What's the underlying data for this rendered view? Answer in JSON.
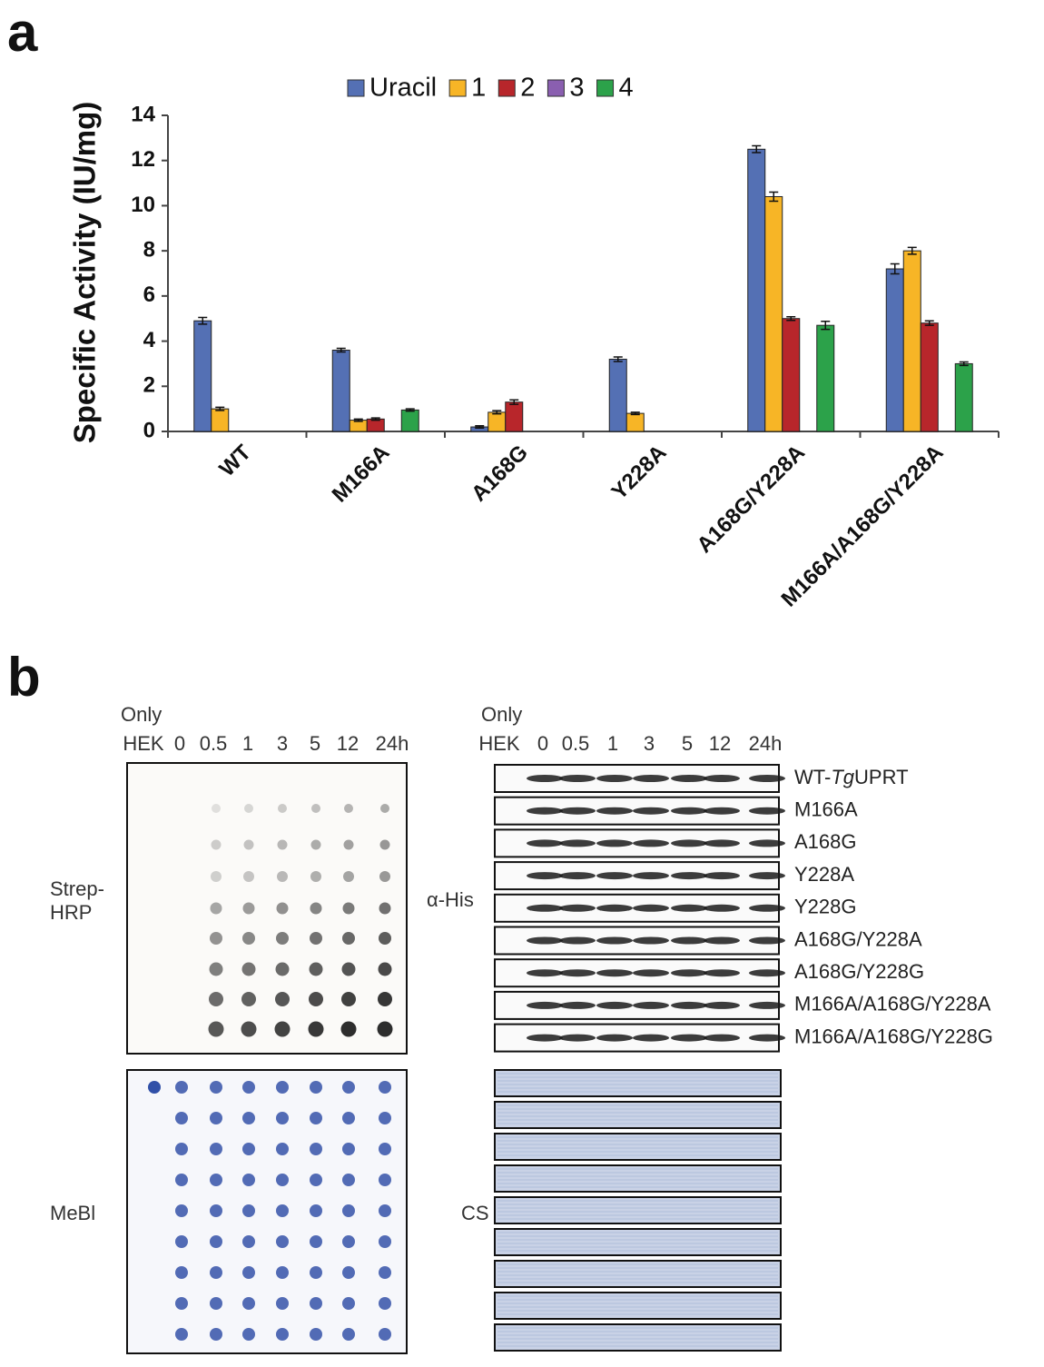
{
  "panel_labels": {
    "a": "a",
    "b": "b"
  },
  "chart_data": {
    "type": "bar",
    "y_label": "Specific Activity (IU/mg)",
    "categories": [
      "WT",
      "M166A",
      "A168G",
      "Y228A",
      "A168G/Y228A",
      "M166A/A168G/Y228A"
    ],
    "series": [
      {
        "name": "Uracil",
        "color": "#5470b4",
        "values": [
          4.9,
          3.6,
          0.2,
          3.2,
          12.5,
          7.2
        ],
        "errors": [
          0.15,
          0.08,
          0.05,
          0.1,
          0.15,
          0.22
        ]
      },
      {
        "name": "1",
        "color": "#f7b526",
        "values": [
          1.0,
          0.5,
          0.85,
          0.8,
          10.4,
          8.0
        ],
        "errors": [
          0.07,
          0.05,
          0.07,
          0.05,
          0.2,
          0.15
        ]
      },
      {
        "name": "2",
        "color": "#b8262b",
        "values": [
          null,
          0.55,
          1.3,
          null,
          5.0,
          4.8
        ],
        "errors": [
          null,
          0.05,
          0.1,
          null,
          0.08,
          0.1
        ]
      },
      {
        "name": "3",
        "color": "#8a5fb0",
        "values": [
          null,
          null,
          null,
          null,
          null,
          null
        ],
        "errors": [
          null,
          null,
          null,
          null,
          null,
          null
        ]
      },
      {
        "name": "4",
        "color": "#2ca24a",
        "values": [
          null,
          0.95,
          null,
          null,
          4.7,
          3.0
        ],
        "errors": [
          null,
          0.05,
          null,
          null,
          0.18,
          0.08
        ]
      }
    ],
    "ylim": [
      0,
      14
    ],
    "yticks": [
      0,
      2,
      4,
      6,
      8,
      10,
      12,
      14
    ],
    "grid": false,
    "legend": "top"
  },
  "blots": {
    "header": {
      "only": "Only",
      "columns": [
        "HEK",
        "0",
        "0.5",
        "1",
        "3",
        "5",
        "12",
        "24h"
      ]
    },
    "dot_blot": {
      "top_label": [
        "Strep-",
        "HRP"
      ],
      "bottom_label": "MeBl"
    },
    "western": {
      "top_label": "α-His",
      "bottom_label": "CS",
      "rows": [
        [
          "WT-",
          "Tg",
          "UPRT"
        ],
        "M166A",
        "A168G",
        "Y228A",
        "Y228G",
        "A168G/Y228A",
        "A168G/Y228G",
        "M166A/A168G/Y228A",
        "M166A/A168G/Y228G"
      ]
    }
  }
}
